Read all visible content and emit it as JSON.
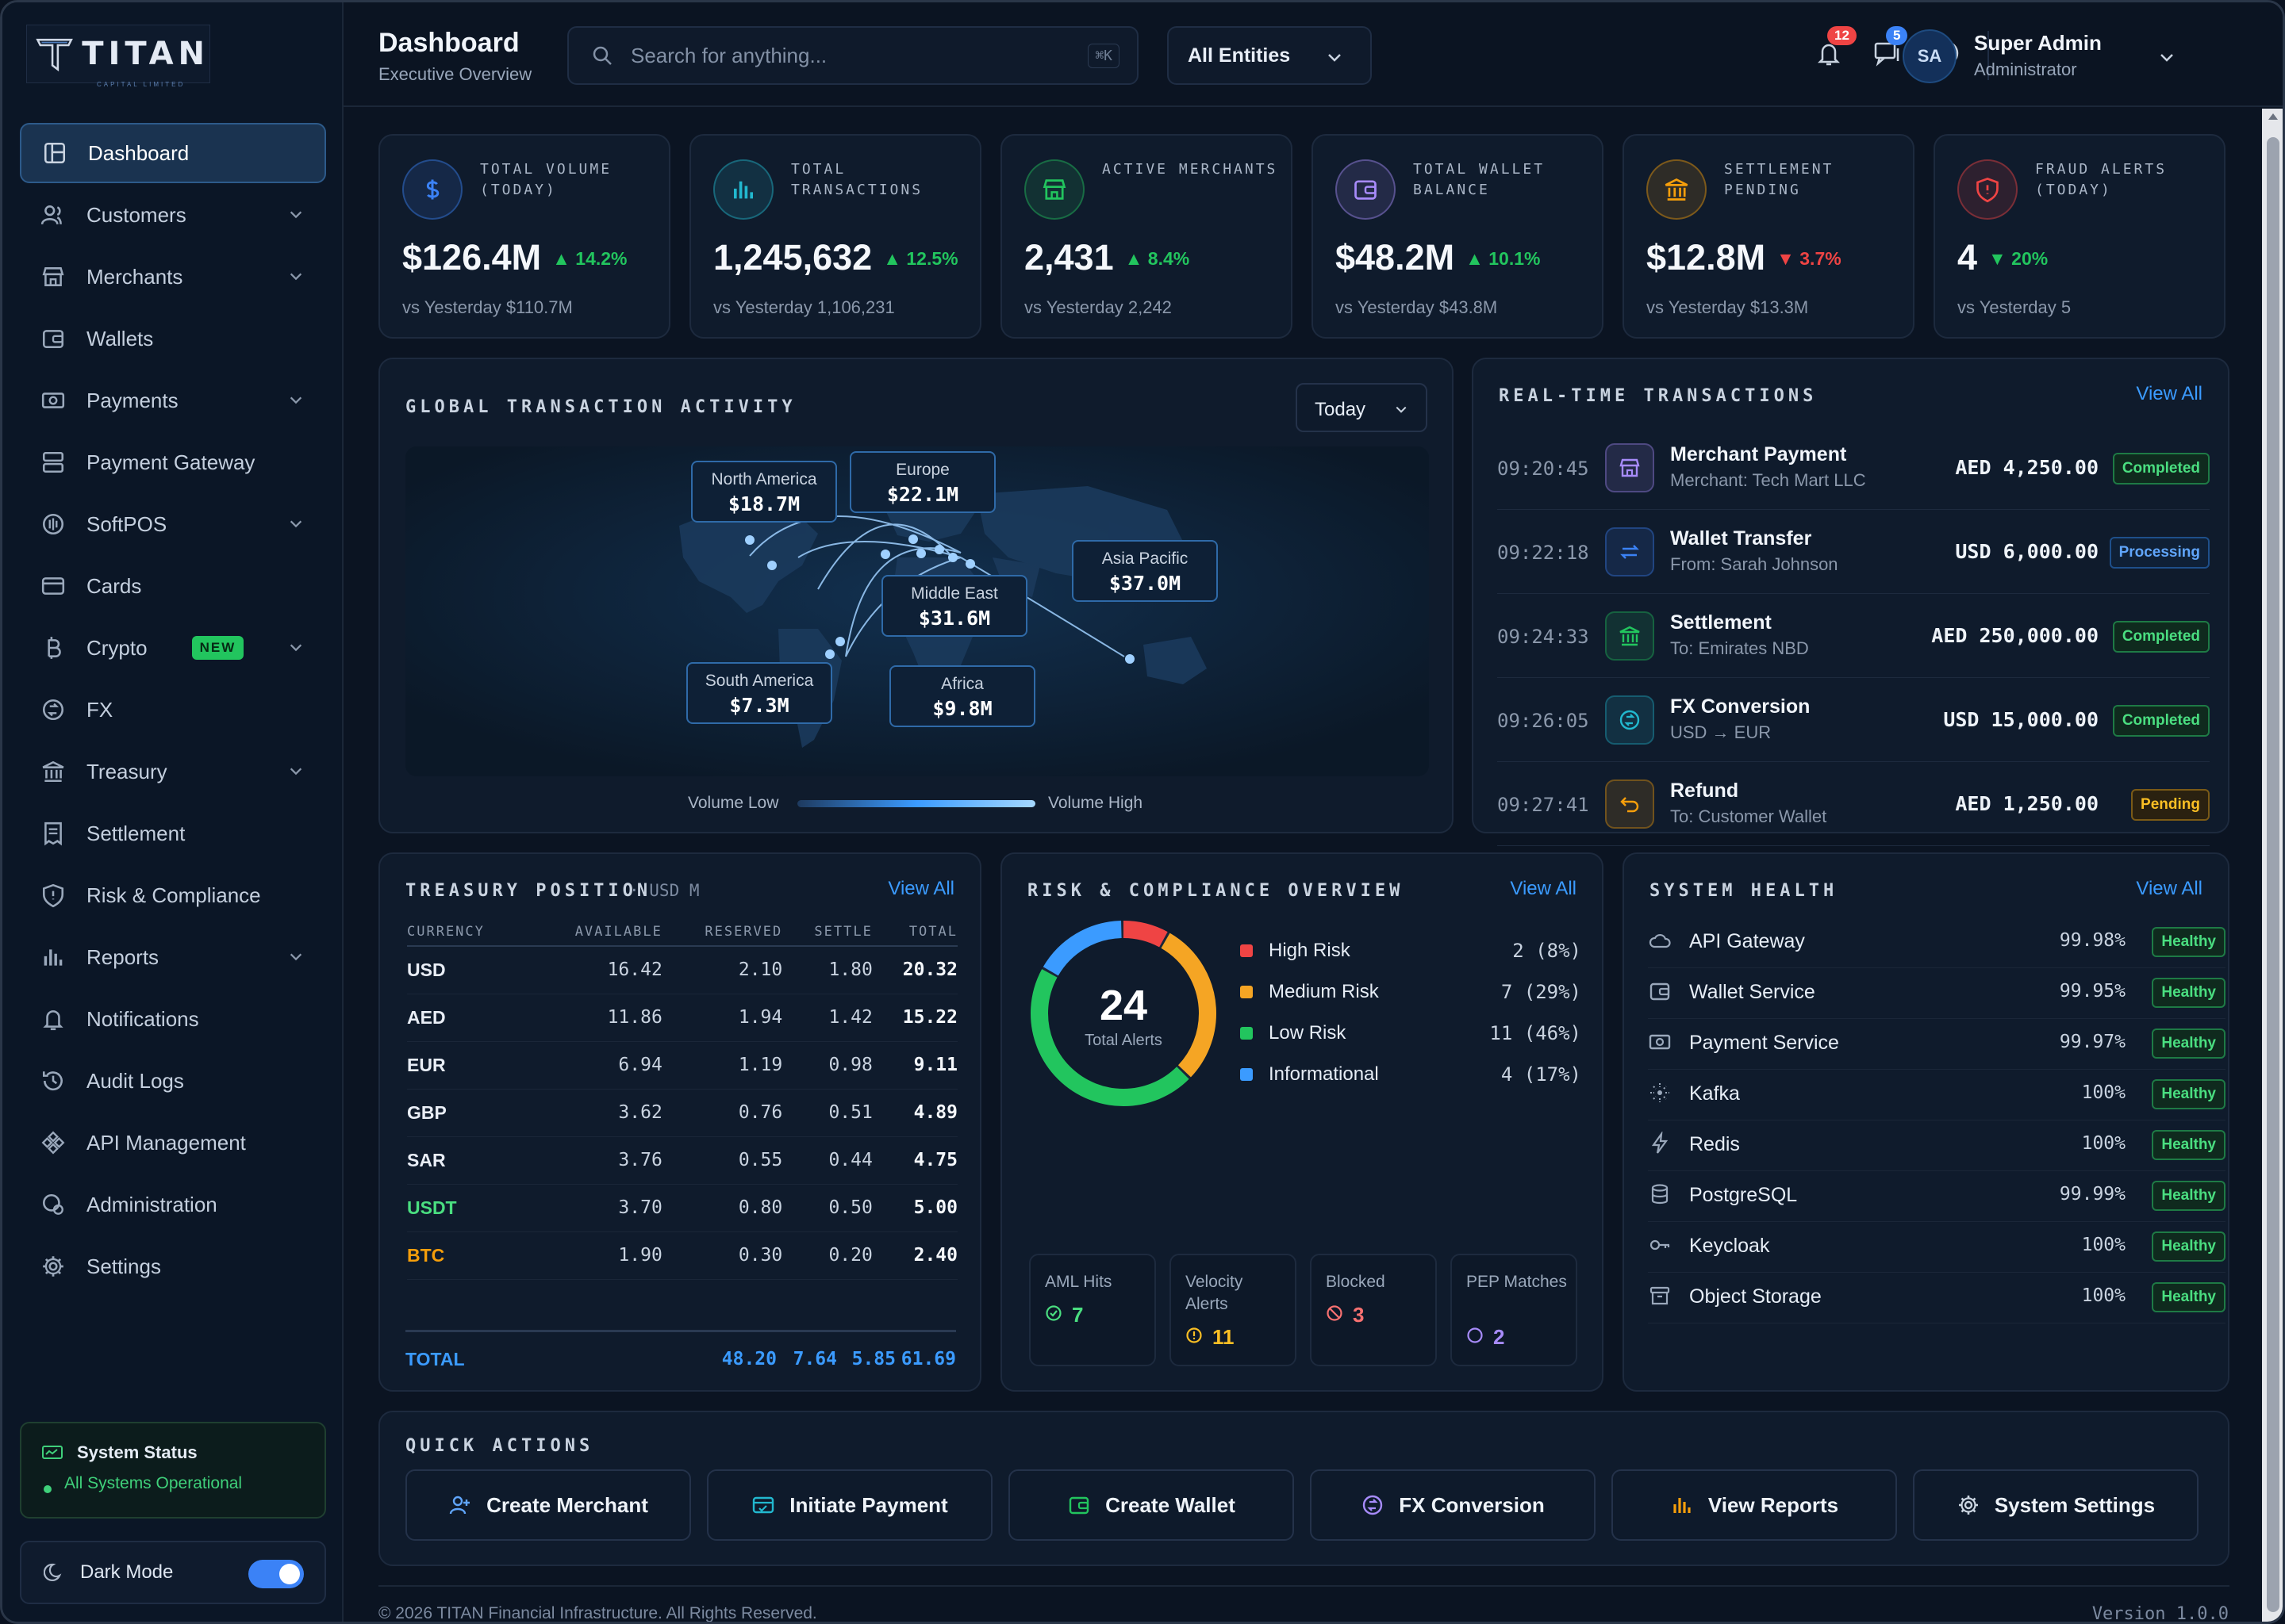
{
  "brand": {
    "name": "TITAN",
    "tagline": "CAPITAL LIMITED"
  },
  "header": {
    "title": "Dashboard",
    "subtitle": "Executive Overview",
    "search_placeholder": "Search for anything...",
    "search_shortcut": "⌘K",
    "entity_filter": "All Entities",
    "notifications_count": "12",
    "messages_count": "5",
    "user": {
      "initials": "SA",
      "name": "Super Admin",
      "role": "Administrator"
    }
  },
  "sidebar": {
    "items": [
      {
        "label": "Dashboard",
        "icon": "dashboard-icon"
      },
      {
        "label": "Customers",
        "icon": "users-icon"
      },
      {
        "label": "Merchants",
        "icon": "store-icon"
      },
      {
        "label": "Wallets",
        "icon": "wallet-icon"
      },
      {
        "label": "Payments",
        "icon": "cash-icon"
      },
      {
        "label": "Payment Gateway",
        "icon": "server-icon"
      },
      {
        "label": "SoftPOS",
        "icon": "nfc-icon"
      },
      {
        "label": "Cards",
        "icon": "card-icon"
      },
      {
        "label": "Crypto",
        "icon": "bitcoin-icon",
        "badge": "NEW"
      },
      {
        "label": "FX",
        "icon": "exchange-icon"
      },
      {
        "label": "Treasury",
        "icon": "bank-icon"
      },
      {
        "label": "Settlement",
        "icon": "receipt-icon"
      },
      {
        "label": "Risk & Compliance",
        "icon": "shield-icon"
      },
      {
        "label": "Reports",
        "icon": "bar-chart-icon"
      },
      {
        "label": "Notifications",
        "icon": "bell-icon"
      },
      {
        "label": "Audit Logs",
        "icon": "history-icon"
      },
      {
        "label": "API Management",
        "icon": "api-icon"
      },
      {
        "label": "Administration",
        "icon": "admin-icon"
      },
      {
        "label": "Settings",
        "icon": "gear-icon"
      }
    ],
    "system_status": {
      "title": "System Status",
      "text": "All Systems Operational"
    },
    "dark_mode": {
      "label": "Dark Mode",
      "enabled": true
    }
  },
  "kpis": [
    {
      "label": "TOTAL VOLUME (TODAY)",
      "value": "$126.4M",
      "change": "▲ 14.2%",
      "direction": "up",
      "compare": "vs Yesterday $110.7M",
      "color": "#3b82f6"
    },
    {
      "label": "TOTAL TRANSACTIONS",
      "value": "1,245,632",
      "change": "▲ 12.5%",
      "direction": "up",
      "compare": "vs Yesterday 1,106,231",
      "color": "#22b8cf"
    },
    {
      "label": "ACTIVE MERCHANTS",
      "value": "2,431",
      "change": "▲ 8.4%",
      "direction": "up",
      "compare": "vs Yesterday 2,242",
      "color": "#22c55e"
    },
    {
      "label": "TOTAL WALLET BALANCE",
      "value": "$48.2M",
      "change": "▲ 10.1%",
      "direction": "up",
      "compare": "vs Yesterday $43.8M",
      "color": "#a78bfa"
    },
    {
      "label": "SETTLEMENT PENDING",
      "value": "$12.8M",
      "change": "▼ 3.7%",
      "direction": "down",
      "compare": "vs Yesterday $13.3M",
      "color": "#f59e0b"
    },
    {
      "label": "FRAUD ALERTS (TODAY)",
      "value": "4",
      "change": "▼ 20%",
      "direction": "down-good",
      "compare": "vs Yesterday 5",
      "color": "#ef4444"
    }
  ],
  "activity": {
    "title": "GLOBAL TRANSACTION ACTIVITY",
    "period": "Today",
    "regions": [
      {
        "name": "North America",
        "value": "$18.7M"
      },
      {
        "name": "Europe",
        "value": "$22.1M"
      },
      {
        "name": "Asia Pacific",
        "value": "$37.0M"
      },
      {
        "name": "Middle East",
        "value": "$31.6M"
      },
      {
        "name": "South America",
        "value": "$7.3M"
      },
      {
        "name": "Africa",
        "value": "$9.8M"
      }
    ],
    "legend_low": "Volume Low",
    "legend_high": "Volume High"
  },
  "realtime": {
    "title": "REAL-TIME TRANSACTIONS",
    "view_all": "View All",
    "rows": [
      {
        "time": "09:20:45",
        "title": "Merchant Payment",
        "sub": "Merchant: Tech Mart LLC",
        "amount": "AED 4,250.00",
        "status": "Completed",
        "icon": "store-icon",
        "color": "#a78bfa"
      },
      {
        "time": "09:22:18",
        "title": "Wallet Transfer",
        "sub": "From: Sarah Johnson",
        "amount": "USD 6,000.00",
        "status": "Processing",
        "icon": "transfer-icon",
        "color": "#3b82f6"
      },
      {
        "time": "09:24:33",
        "title": "Settlement",
        "sub": "To: Emirates NBD",
        "amount": "AED 250,000.00",
        "status": "Completed",
        "icon": "bank-icon",
        "color": "#22c55e"
      },
      {
        "time": "09:26:05",
        "title": "FX Conversion",
        "sub": "USD → EUR",
        "amount": "USD 15,000.00",
        "status": "Completed",
        "icon": "exchange-icon",
        "color": "#22b8cf"
      },
      {
        "time": "09:27:41",
        "title": "Refund",
        "sub": "To: Customer Wallet",
        "amount": "AED 1,250.00",
        "status": "Pending",
        "icon": "undo-icon",
        "color": "#f59e0b"
      }
    ]
  },
  "treasury": {
    "title": "TREASURY POSITION",
    "unit": "· USD M",
    "view_all": "View All",
    "columns": [
      "CURRENCY",
      "AVAILABLE",
      "RESERVED",
      "SETTLE",
      "TOTAL"
    ],
    "rows": [
      [
        "USD",
        "16.42",
        "2.10",
        "1.80",
        "20.32"
      ],
      [
        "AED",
        "11.86",
        "1.94",
        "1.42",
        "15.22"
      ],
      [
        "EUR",
        "6.94",
        "1.19",
        "0.98",
        "9.11"
      ],
      [
        "GBP",
        "3.62",
        "0.76",
        "0.51",
        "4.89"
      ],
      [
        "SAR",
        "3.76",
        "0.55",
        "0.44",
        "4.75"
      ],
      [
        "USDT",
        "3.70",
        "0.80",
        "0.50",
        "5.00"
      ],
      [
        "BTC",
        "1.90",
        "0.30",
        "0.20",
        "2.40"
      ]
    ],
    "totals": [
      "TOTAL",
      "48.20",
      "7.64",
      "5.85",
      "61.69"
    ]
  },
  "risk": {
    "title": "RISK & COMPLIANCE OVERVIEW",
    "view_all": "View All",
    "total": "24",
    "total_label": "Total Alerts",
    "breakdown": [
      {
        "label": "High Risk",
        "count": "2 (8%)",
        "value": 2,
        "color": "#ef4444"
      },
      {
        "label": "Medium Risk",
        "count": "7 (29%)",
        "value": 7,
        "color": "#f5a524"
      },
      {
        "label": "Low Risk",
        "count": "11 (46%)",
        "value": 11,
        "color": "#22c55e"
      },
      {
        "label": "Informational",
        "count": "4 (17%)",
        "value": 4,
        "color": "#3b9bff"
      }
    ],
    "minis": [
      {
        "label": "AML Hits",
        "value": "7",
        "color": "#4ade80"
      },
      {
        "label": "Velocity Alerts",
        "value": "11",
        "color": "#fbbf24"
      },
      {
        "label": "Blocked",
        "value": "3",
        "color": "#f87171"
      },
      {
        "label": "PEP Matches",
        "value": "2",
        "color": "#a78bfa"
      }
    ]
  },
  "health": {
    "title": "SYSTEM HEALTH",
    "view_all": "View All",
    "services": [
      {
        "name": "API Gateway",
        "uptime": "99.98%",
        "status": "Healthy",
        "icon": "cloud-icon"
      },
      {
        "name": "Wallet Service",
        "uptime": "99.95%",
        "status": "Healthy",
        "icon": "wallet-icon"
      },
      {
        "name": "Payment Service",
        "uptime": "99.97%",
        "status": "Healthy",
        "icon": "cash-icon"
      },
      {
        "name": "Kafka",
        "uptime": "100%",
        "status": "Healthy",
        "icon": "kafka-icon"
      },
      {
        "name": "Redis",
        "uptime": "100%",
        "status": "Healthy",
        "icon": "bolt-icon"
      },
      {
        "name": "PostgreSQL",
        "uptime": "99.99%",
        "status": "Healthy",
        "icon": "database-icon"
      },
      {
        "name": "Keycloak",
        "uptime": "100%",
        "status": "Healthy",
        "icon": "key-icon"
      },
      {
        "name": "Object Storage",
        "uptime": "100%",
        "status": "Healthy",
        "icon": "archive-icon"
      }
    ]
  },
  "quick_actions": {
    "title": "QUICK ACTIONS",
    "items": [
      {
        "label": "Create Merchant",
        "icon": "user-plus-icon",
        "color": "#60a5fa"
      },
      {
        "label": "Initiate Payment",
        "icon": "payment-icon",
        "color": "#22b8cf"
      },
      {
        "label": "Create Wallet",
        "icon": "wallet-icon",
        "color": "#22c55e"
      },
      {
        "label": "FX Conversion",
        "icon": "exchange-icon",
        "color": "#a78bfa"
      },
      {
        "label": "View Reports",
        "icon": "bar-chart-icon",
        "color": "#f59e0b"
      },
      {
        "label": "System Settings",
        "icon": "gear-icon",
        "color": "#cbd5e1"
      }
    ]
  },
  "footer": {
    "copyright": "© 2026 TITAN Financial Infrastructure. All Rights Reserved.",
    "version": "Version 1.0.0"
  }
}
